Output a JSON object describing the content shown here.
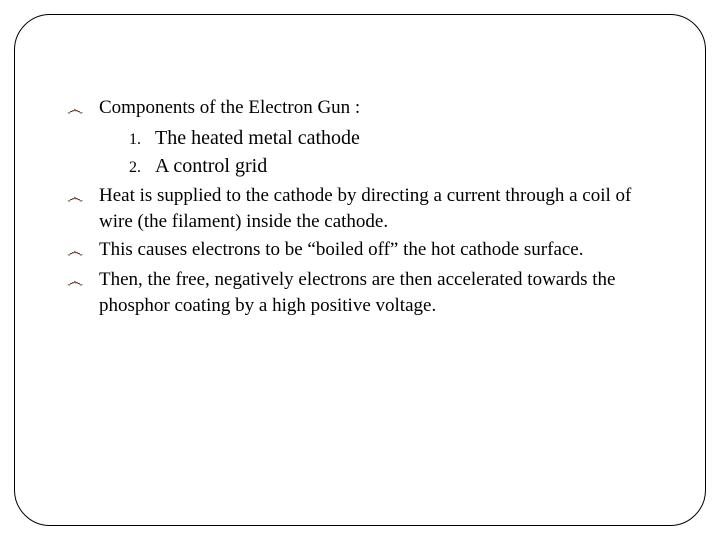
{
  "slide": {
    "bullet_glyph": "෴",
    "bullet_color": "#5a2a1a",
    "text_color": "#000000",
    "background_color": "#ffffff",
    "border_color": "#000000",
    "border_radius": 36,
    "body_fontsize": 19,
    "sublist_fontsize": 20,
    "items": [
      {
        "text": "Components of the Electron Gun :",
        "sublist": [
          {
            "number": "1.",
            "text": "The heated metal cathode"
          },
          {
            "number": "2.",
            "text": "A control grid"
          }
        ]
      },
      {
        "text": "Heat is supplied to the cathode by directing a current through a coil of wire (the filament) inside the cathode."
      },
      {
        "text": "This causes electrons to be “boiled off” the hot cathode surface."
      },
      {
        "text": "Then, the free, negatively electrons are then accelerated towards the phosphor coating by a high positive voltage."
      }
    ]
  }
}
